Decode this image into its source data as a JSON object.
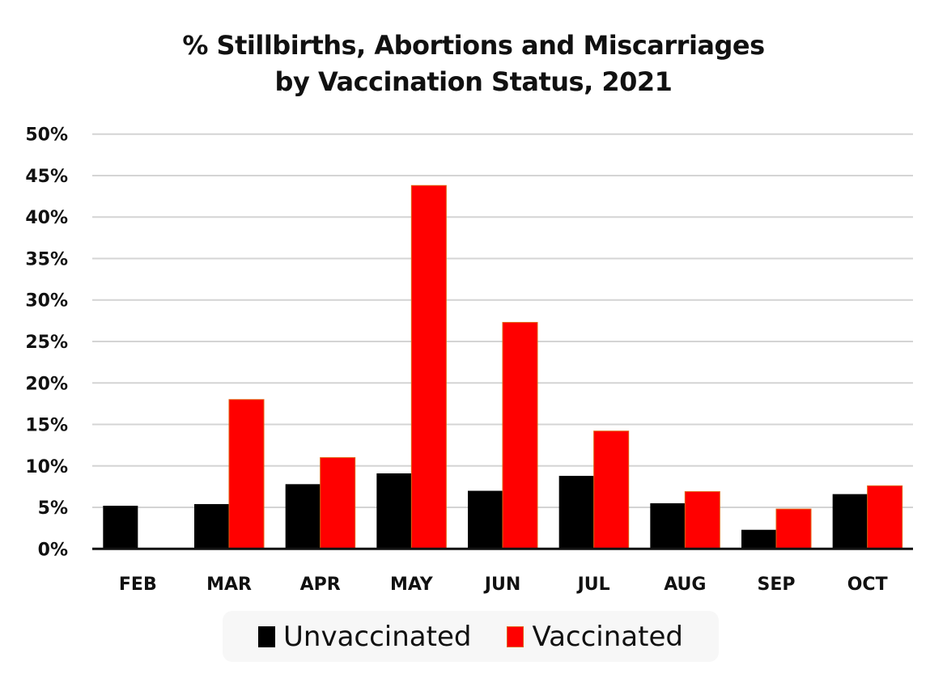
{
  "chart_data": {
    "type": "bar",
    "title": [
      "% Stillbirths, Abortions and Miscarriages",
      "by Vaccination Status, 2021"
    ],
    "xlabel": "",
    "ylabel": "",
    "categories": [
      "FEB",
      "MAR",
      "APR",
      "MAY",
      "JUN",
      "JUL",
      "AUG",
      "SEP",
      "OCT"
    ],
    "series": [
      {
        "name": "Unvaccinated",
        "color": "#000000",
        "values": [
          5.2,
          5.4,
          7.8,
          9.1,
          7.0,
          8.8,
          5.5,
          2.3,
          6.6
        ]
      },
      {
        "name": "Vaccinated",
        "color": "#ff0000",
        "values": [
          null,
          18.0,
          11.0,
          43.8,
          27.3,
          14.2,
          6.9,
          4.8,
          7.6
        ]
      }
    ],
    "ylim": [
      0,
      50
    ],
    "yticks": [
      0,
      5,
      10,
      15,
      20,
      25,
      30,
      35,
      40,
      45,
      50
    ],
    "ytick_labels": [
      "0%",
      "5%",
      "10%",
      "15%",
      "20%",
      "25%",
      "30%",
      "35%",
      "40%",
      "45%",
      "50%"
    ],
    "grid": true,
    "legend_position": "bottom"
  }
}
